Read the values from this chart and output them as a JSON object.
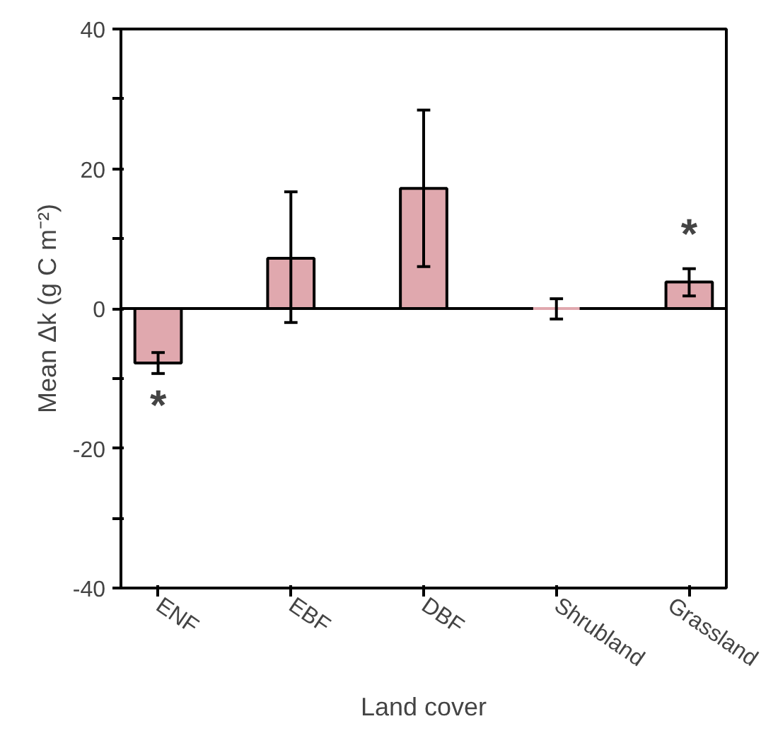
{
  "chart_data": {
    "type": "bar",
    "xlabel": "Land cover",
    "ylabel": "Mean Δk (g C m⁻²)",
    "categories": [
      "ENF",
      "EBF",
      "DBF",
      "Shrubland",
      "Grassland"
    ],
    "values": [
      -7.8,
      7.2,
      17.2,
      0,
      3.8
    ],
    "ref_lines": [
      {
        "axis": "y",
        "value": 0,
        "color": "#000000"
      }
    ],
    "errors": [
      [
        -9.3,
        -6.3
      ],
      [
        -2.0,
        16.7
      ],
      [
        6.0,
        28.4
      ],
      [
        -1.5,
        1.4
      ],
      [
        1.8,
        5.7
      ]
    ],
    "color": "#e0a8ae",
    "ylim": [
      -40,
      40
    ],
    "yticks": [
      -40,
      {
        "value": -30,
        "label": null
      },
      -20,
      {
        "value": -10,
        "label": null
      },
      0,
      {
        "value": 10,
        "label": null
      },
      20,
      {
        "value": 30,
        "label": null
      },
      40
    ],
    "grid": false,
    "annotations": [
      "*",
      "*"
    ]
  }
}
